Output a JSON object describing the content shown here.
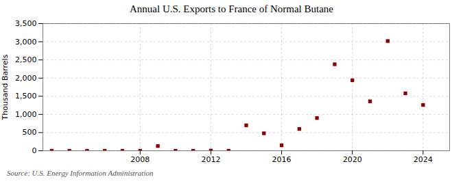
{
  "chart_data": {
    "type": "scatter",
    "title": "Annual U.S. Exports to France of Normal Butane",
    "ylabel": "Thousand Barrels",
    "annotation": "Source: U.S. Energy Information Administration",
    "x": [
      2003,
      2004,
      2005,
      2006,
      2007,
      2008,
      2009,
      2010,
      2011,
      2012,
      2013,
      2014,
      2015,
      2016,
      2017,
      2018,
      2019,
      2020,
      2021,
      2022,
      2023,
      2024
    ],
    "values": [
      0,
      0,
      0,
      0,
      0,
      0,
      130,
      0,
      0,
      5,
      0,
      700,
      480,
      150,
      600,
      900,
      2380,
      1940,
      1360,
      3020,
      1580,
      1260
    ],
    "color": "#8b0000",
    "marker": "square",
    "xlim": [
      2002.5,
      2025.5
    ],
    "xticks": [
      2008,
      2012,
      2016,
      2020,
      2024
    ],
    "ylim": [
      0,
      3500
    ],
    "yticks": [
      0,
      500,
      {
        "value": 1000,
        "label": "1,000"
      },
      {
        "value": 1500,
        "label": "1,500"
      },
      {
        "value": 2000,
        "label": "2,000"
      },
      {
        "value": 2500,
        "label": "2,500"
      },
      {
        "value": 3000,
        "label": "3,000"
      },
      {
        "value": 3500,
        "label": "3,500"
      }
    ],
    "grid": true
  }
}
